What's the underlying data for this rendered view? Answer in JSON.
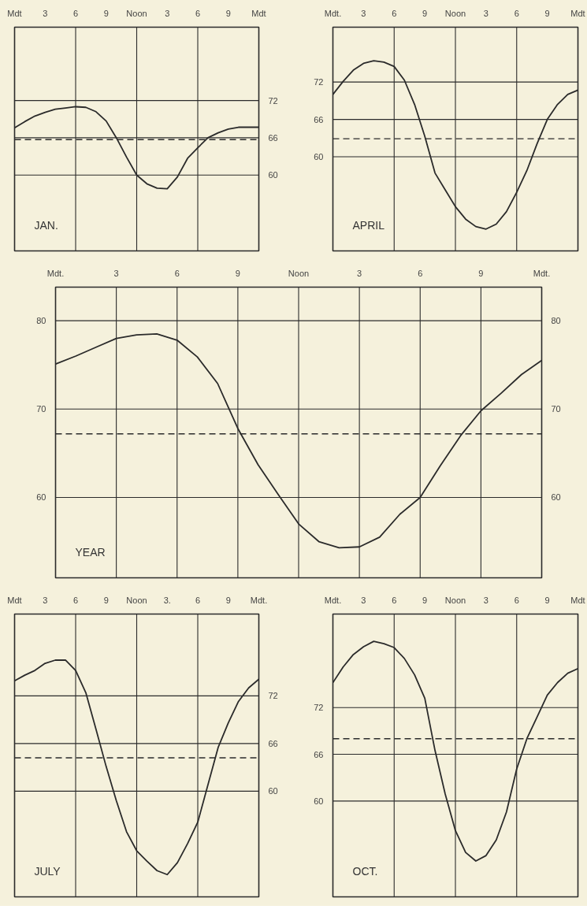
{
  "chart_data": [
    {
      "type": "line",
      "title": "JAN.",
      "categories": [
        "Mdt",
        null,
        null,
        "3",
        null,
        null,
        "6",
        null,
        null,
        "9",
        null,
        null,
        "Noon",
        null,
        null,
        "3",
        null,
        null,
        "6",
        null,
        null,
        "9",
        null,
        null,
        "Mdt"
      ],
      "y2lim": [
        47.8,
        83.8
      ],
      "y2ticks": [
        60,
        66,
        72
      ],
      "grid": true,
      "line_style": "solid",
      "series": [
        {
          "color": "#2b2b2b",
          "axis": "y2",
          "values": [
            67.6,
            68.6,
            69.5,
            70.1,
            70.6,
            70.8,
            71.0,
            70.9,
            70.2,
            68.7,
            66.0,
            62.9,
            60.0,
            58.6,
            57.9,
            57.8,
            59.7,
            62.7,
            64.4,
            66.0,
            66.8,
            67.4,
            67.7,
            67.7,
            67.7
          ]
        }
      ],
      "ref_lines": [
        {
          "axis": "y2",
          "value": 65.7,
          "color": "#2b2b2b",
          "line_style": "dashed"
        }
      ]
    },
    {
      "type": "line",
      "title": "APRIL",
      "categories": [
        "Mdt.",
        null,
        null,
        "3",
        null,
        null,
        "6",
        null,
        null,
        "9",
        null,
        null,
        "Noon",
        null,
        null,
        "3",
        null,
        null,
        "6",
        null,
        null,
        "9",
        null,
        null,
        "Mdt"
      ],
      "ylim": [
        44.9,
        80.8
      ],
      "yticks": [
        60,
        66,
        72
      ],
      "grid": true,
      "line_style": "solid",
      "series": [
        {
          "color": "#2b2b2b",
          "values": [
            70.0,
            72.1,
            73.9,
            75.0,
            75.4,
            75.2,
            74.5,
            72.3,
            68.4,
            63.3,
            57.4,
            54.7,
            52.0,
            50.0,
            48.8,
            48.4,
            49.2,
            51.2,
            54.3,
            57.8,
            62.1,
            66.0,
            68.4,
            70.0,
            70.7
          ]
        }
      ],
      "ref_lines": [
        {
          "axis": "y",
          "value": 62.9,
          "color": "#2b2b2b",
          "line_style": "dashed"
        }
      ]
    },
    {
      "type": "line",
      "title": "YEAR",
      "categories": [
        "Mdt.",
        null,
        null,
        "3",
        null,
        null,
        "6",
        null,
        null,
        "9",
        null,
        null,
        "Noon",
        null,
        null,
        "3",
        null,
        null,
        "6",
        null,
        null,
        "9",
        null,
        null,
        "Mdt."
      ],
      "ylim": [
        50.9,
        83.8
      ],
      "yticks": [
        60,
        70,
        80
      ],
      "y2lim": [
        50.9,
        83.8
      ],
      "y2ticks": [
        60,
        70,
        80
      ],
      "grid": true,
      "line_style": "solid",
      "series": [
        {
          "color": "#2b2b2b",
          "values": [
            75.1,
            76.0,
            77.0,
            78.0,
            78.4,
            78.5,
            77.8,
            75.9,
            72.9,
            67.8,
            63.7,
            60.3,
            57.0,
            55.0,
            54.3,
            54.4,
            55.5,
            58.1,
            60.0,
            63.6,
            67.0,
            69.8,
            71.8,
            73.9,
            75.5
          ]
        }
      ],
      "ref_lines": [
        {
          "axis": "y",
          "value": 67.2,
          "color": "#2b2b2b",
          "line_style": "dashed"
        }
      ]
    },
    {
      "type": "line",
      "title": "JULY",
      "categories": [
        "Mdt",
        null,
        null,
        "3",
        null,
        null,
        "6",
        null,
        null,
        "9",
        null,
        null,
        "Noon",
        null,
        null,
        "3.",
        null,
        null,
        "6",
        null,
        null,
        "9",
        null,
        null,
        "Mdt."
      ],
      "y2lim": [
        46.7,
        82.3
      ],
      "y2ticks": [
        60,
        66,
        72
      ],
      "grid": true,
      "line_style": "solid",
      "series": [
        {
          "color": "#2b2b2b",
          "axis": "y2",
          "values": [
            73.9,
            74.6,
            75.2,
            76.1,
            76.5,
            76.5,
            75.2,
            72.4,
            67.8,
            63.1,
            58.8,
            54.9,
            52.5,
            51.2,
            50.0,
            49.5,
            51.0,
            53.4,
            56.1,
            60.8,
            65.5,
            68.6,
            71.3,
            73.0,
            74.1
          ]
        }
      ],
      "ref_lines": [
        {
          "axis": "y2",
          "value": 64.2,
          "color": "#2b2b2b",
          "line_style": "dashed"
        }
      ]
    },
    {
      "type": "line",
      "title": "OCT.",
      "categories": [
        "Mdt.",
        null,
        null,
        "3",
        null,
        null,
        "6",
        null,
        null,
        "9",
        null,
        null,
        "Noon",
        null,
        null,
        "3",
        null,
        null,
        "6",
        null,
        null,
        "9",
        null,
        null,
        "Mdt"
      ],
      "ylim": [
        47.7,
        84.0
      ],
      "yticks": [
        60,
        66,
        72
      ],
      "grid": true,
      "line_style": "solid",
      "series": [
        {
          "color": "#2b2b2b",
          "values": [
            75.2,
            77.2,
            78.8,
            79.8,
            80.5,
            80.2,
            79.7,
            78.3,
            76.2,
            73.2,
            66.5,
            60.9,
            56.2,
            53.4,
            52.3,
            53.0,
            55.0,
            58.6,
            64.1,
            68.0,
            70.8,
            73.6,
            75.2,
            76.4,
            77.0
          ]
        }
      ],
      "ref_lines": [
        {
          "axis": "y",
          "value": 68.0,
          "color": "#2b2b2b",
          "line_style": "dashed"
        }
      ]
    }
  ]
}
